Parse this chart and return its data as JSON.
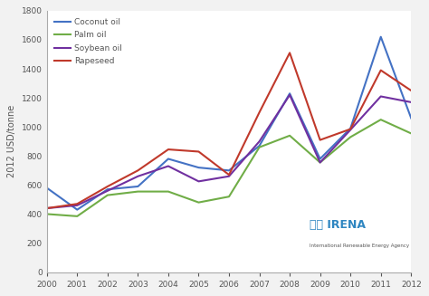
{
  "years": [
    2000,
    2001,
    2002,
    2003,
    2004,
    2005,
    2006,
    2007,
    2008,
    2009,
    2010,
    2011,
    2012
  ],
  "coconut_oil": [
    580,
    430,
    570,
    590,
    780,
    720,
    700,
    870,
    1230,
    780,
    990,
    1620,
    1060
  ],
  "palm_oil": [
    400,
    385,
    530,
    555,
    555,
    480,
    520,
    860,
    940,
    755,
    930,
    1050,
    955
  ],
  "soybean_oil": [
    440,
    460,
    560,
    660,
    730,
    625,
    660,
    900,
    1220,
    755,
    980,
    1210,
    1170
  ],
  "rapeseed": [
    440,
    470,
    590,
    700,
    845,
    830,
    670,
    1100,
    1510,
    910,
    985,
    1390,
    1250
  ],
  "coconut_color": "#4472C4",
  "palm_color": "#70AD47",
  "soybean_color": "#7030A0",
  "rapeseed_color": "#C0392B",
  "ylabel": "2012 USD/tonne",
  "ylim": [
    0,
    1800
  ],
  "yticks": [
    0,
    200,
    400,
    600,
    800,
    1000,
    1200,
    1400,
    1600,
    1800
  ],
  "legend_labels": [
    "Coconut oil",
    "Palm oil",
    "Soybean oil",
    "Rapeseed"
  ],
  "background_color": "#f2f2f2",
  "plot_bg_color": "#ffffff",
  "line_width": 1.5,
  "spine_color": "#aaaaaa",
  "tick_color": "#555555",
  "label_color": "#555555"
}
